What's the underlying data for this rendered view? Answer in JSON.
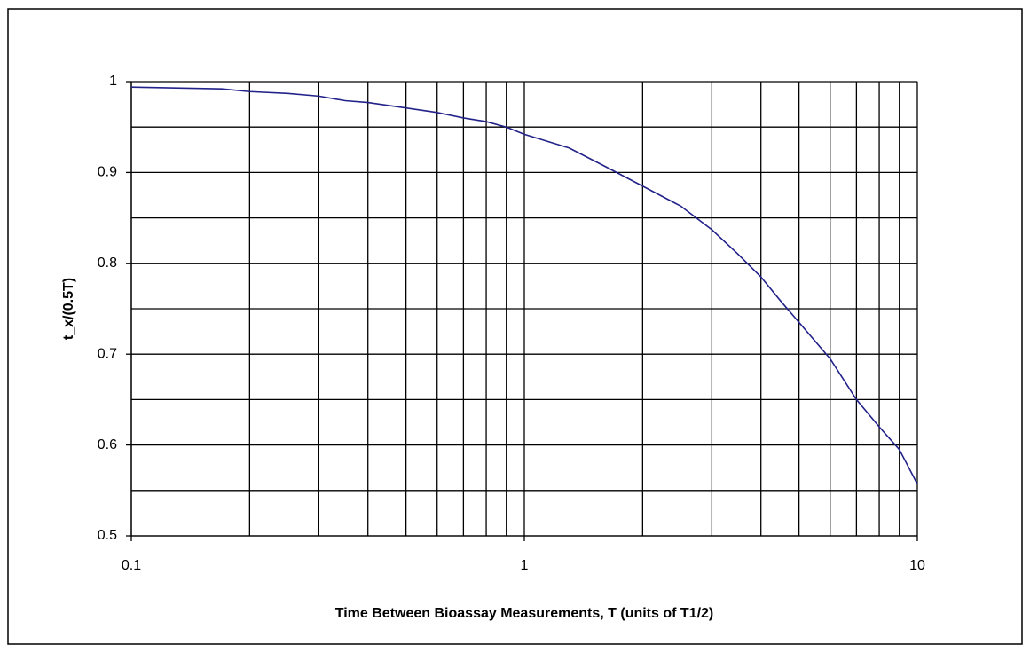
{
  "chart_data": {
    "type": "line",
    "x_label": "Time Between Bioassay Measurements, T (units of T1/2)",
    "y_label": "t_x/(0.5T)",
    "x": [
      0.1,
      0.13,
      0.17,
      0.2,
      0.25,
      0.3,
      0.35,
      0.4,
      0.5,
      0.6,
      0.7,
      0.8,
      0.9,
      1,
      1.3,
      1.6,
      2,
      2.5,
      3,
      3.5,
      4,
      4.5,
      5,
      6,
      7,
      8,
      9,
      10
    ],
    "series": [
      {
        "name": "t_x/(0.5T)",
        "color": "#22228a",
        "values": [
          0.994,
          0.993,
          0.992,
          0.989,
          0.987,
          0.984,
          0.979,
          0.977,
          0.971,
          0.966,
          0.96,
          0.956,
          0.95,
          0.942,
          0.927,
          0.907,
          0.885,
          0.863,
          0.837,
          0.81,
          0.785,
          0.758,
          0.735,
          0.695,
          0.65,
          0.62,
          0.595,
          0.557
        ]
      }
    ],
    "xscale": "log",
    "xlim": [
      0.1,
      10
    ],
    "xticks": [
      0.1,
      1,
      10
    ],
    "xgrid_minor": [
      0.2,
      0.3,
      0.4,
      0.5,
      0.6,
      0.7,
      0.8,
      0.9,
      2,
      3,
      4,
      5,
      6,
      7,
      8,
      9
    ],
    "ylim": [
      0.5,
      1
    ],
    "yticks": [
      0.5,
      0.6,
      0.7,
      0.8,
      0.9,
      1
    ],
    "ygrid_minor": [
      0.55,
      0.65,
      0.75,
      0.85,
      0.95
    ],
    "grid": true
  }
}
